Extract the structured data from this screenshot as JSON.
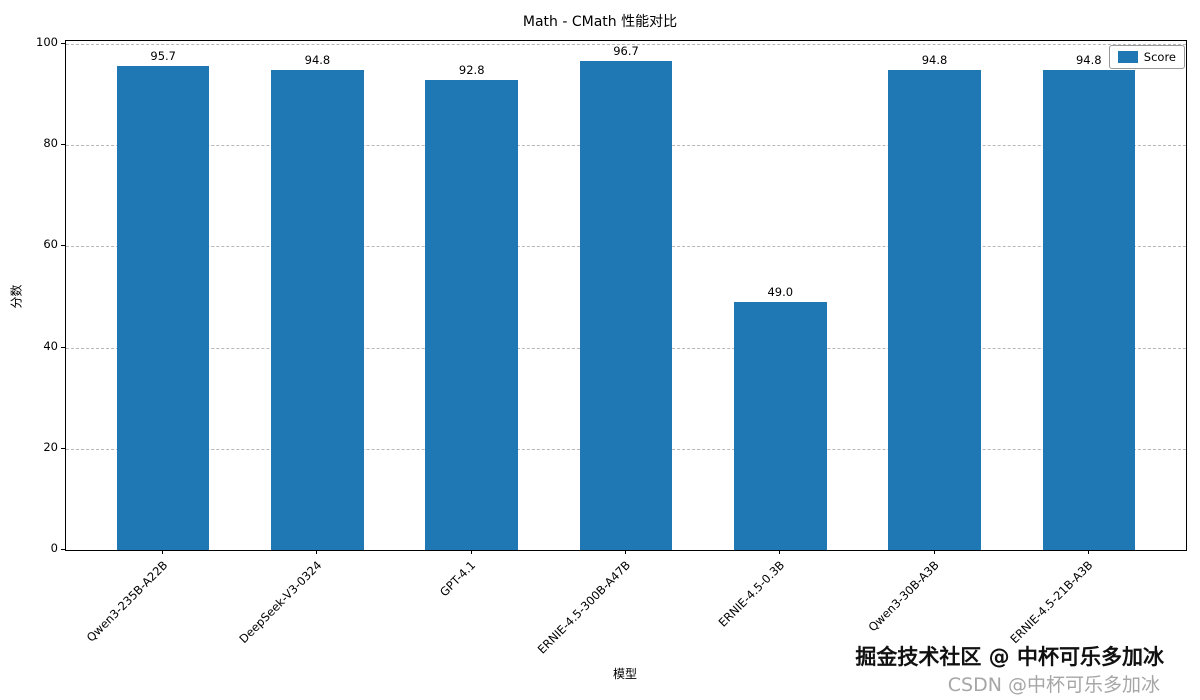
{
  "watermark": {
    "line1": "掘金技术社区 @ 中杯可乐多加冰",
    "line2": "CSDN @中杯可乐多加冰"
  },
  "chart_data": {
    "type": "bar",
    "title": "Math - CMath 性能对比",
    "categories": [
      "Qwen3-235B-A22B",
      "DeepSeek-V3-0324",
      "GPT-4.1",
      "ERNIE-4.5-300B-A47B",
      "ERNIE-4.5-0.3B",
      "Qwen3-30B-A3B",
      "ERNIE-4.5-21B-A3B"
    ],
    "values": [
      95.7,
      94.8,
      92.8,
      96.7,
      49.0,
      94.8,
      94.8
    ],
    "xlabel": "模型",
    "ylabel": "分数",
    "ylim": [
      0,
      100
    ],
    "yticks": [
      0,
      20,
      40,
      60,
      80,
      100
    ],
    "grid": true,
    "grid_style": "dashed",
    "legend_label": "Score",
    "legend_position": "upper right",
    "bar_color": "#1f77b4"
  }
}
